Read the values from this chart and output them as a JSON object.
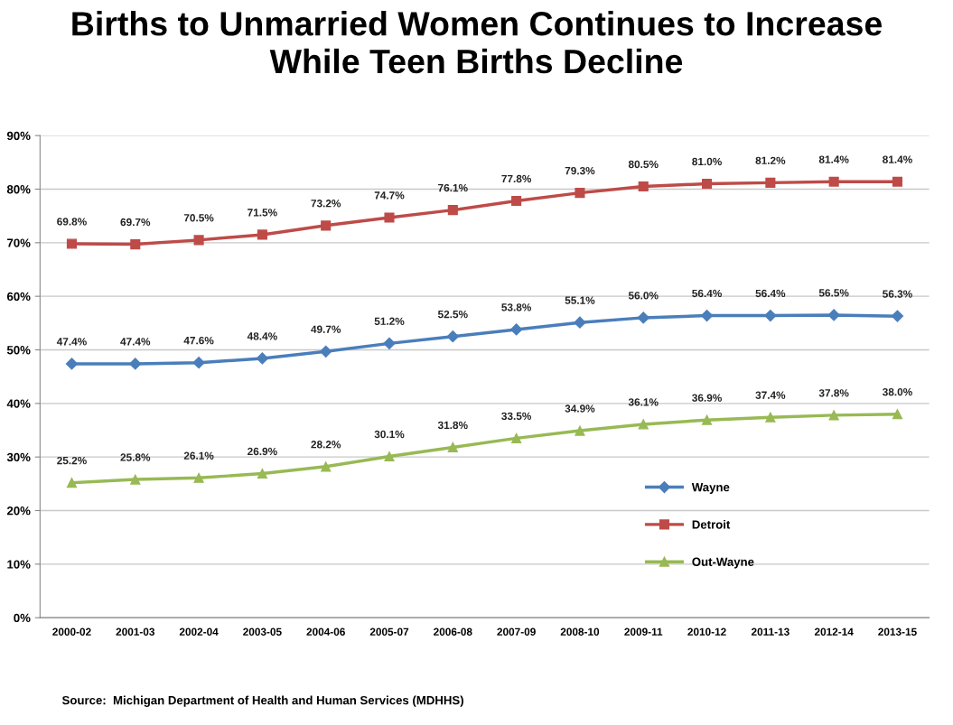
{
  "chart_data": {
    "type": "line",
    "title": "Births to Unmarried Women Continues to Increase\nWhile Teen Births Decline",
    "categories": [
      "2000-02",
      "2001-03",
      "2002-04",
      "2003-05",
      "2004-06",
      "2005-07",
      "2006-08",
      "2007-09",
      "2008-10",
      "2009-11",
      "2010-12",
      "2011-13",
      "2012-14",
      "2013-15"
    ],
    "series": [
      {
        "name": "Wayne",
        "color": "#4a7ebb",
        "marker": "diamond",
        "values": [
          47.4,
          47.4,
          47.6,
          48.4,
          49.7,
          51.2,
          52.5,
          53.8,
          55.1,
          56.0,
          56.4,
          56.4,
          56.5,
          56.3
        ],
        "value_labels": [
          "47.4%",
          "47.4%",
          "47.6%",
          "48.4%",
          "49.7%",
          "51.2%",
          "52.5%",
          "53.8%",
          "55.1%",
          "56.0%",
          "56.4%",
          "56.4%",
          "56.5%",
          "56.3%"
        ]
      },
      {
        "name": "Detroit",
        "color": "#be4b48",
        "marker": "square",
        "values": [
          69.8,
          69.7,
          70.5,
          71.5,
          73.2,
          74.7,
          76.1,
          77.8,
          79.3,
          80.5,
          81.0,
          81.2,
          81.4,
          81.4
        ],
        "value_labels": [
          "69.8%",
          "69.7%",
          "70.5%",
          "71.5%",
          "73.2%",
          "74.7%",
          "76.1%",
          "77.8%",
          "79.3%",
          "80.5%",
          "81.0%",
          "81.2%",
          "81.4%",
          "81.4%"
        ]
      },
      {
        "name": "Out-Wayne",
        "color": "#98b954",
        "marker": "triangle",
        "values": [
          25.2,
          25.8,
          26.1,
          26.9,
          28.2,
          30.1,
          31.8,
          33.5,
          34.9,
          36.1,
          36.9,
          37.4,
          37.8,
          38.0
        ],
        "value_labels": [
          "25.2%",
          "25.8%",
          "26.1%",
          "26.9%",
          "28.2%",
          "30.1%",
          "31.8%",
          "33.5%",
          "34.9%",
          "36.1%",
          "36.9%",
          "37.4%",
          "37.8%",
          "38.0%"
        ]
      }
    ],
    "ylim": [
      0,
      90
    ],
    "yticks": [
      {
        "value": 0,
        "label": "0%"
      },
      {
        "value": 10,
        "label": "10%"
      },
      {
        "value": 20,
        "label": "20%"
      },
      {
        "value": 30,
        "label": "30%"
      },
      {
        "value": 40,
        "label": "40%"
      },
      {
        "value": 50,
        "label": "50%"
      },
      {
        "value": 60,
        "label": "60%"
      },
      {
        "value": 70,
        "label": "70%"
      },
      {
        "value": 80,
        "label": "80%"
      },
      {
        "value": 90,
        "label": "90%"
      }
    ],
    "grid": "y",
    "legend": "right",
    "line_style": "solid",
    "annotations": [
      "Source:  Michigan Department of Health and Human Services (MDHHS)"
    ]
  }
}
